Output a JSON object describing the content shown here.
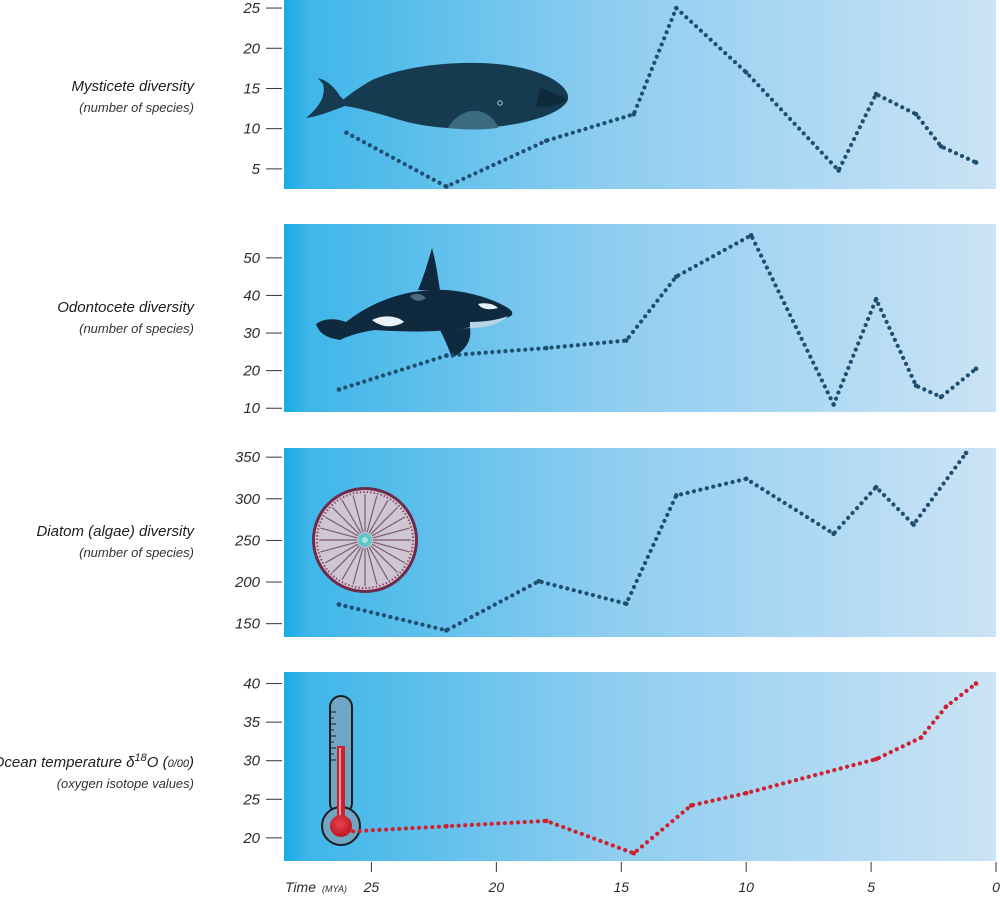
{
  "chart_data": [
    {
      "type": "line",
      "title": "Mysticete diversity",
      "subtitle": "(number of species)",
      "yticks": [
        5,
        10,
        15,
        20,
        25
      ],
      "ylim": [
        2.5,
        26
      ],
      "x": [
        26,
        22,
        18,
        14.5,
        12.8,
        10,
        6.3,
        4.8,
        3.2,
        2.2,
        0.8
      ],
      "values": [
        9.5,
        2.8,
        8.5,
        11.8,
        25,
        17,
        4.8,
        14.3,
        11.8,
        7.8,
        5.8
      ],
      "color": "#1e4e70",
      "icon": "bowhead-whale-icon"
    },
    {
      "type": "line",
      "title": "Odontocete diversity",
      "subtitle": "(number of species)",
      "yticks": [
        10,
        20,
        30,
        40,
        50
      ],
      "ylim": [
        9,
        59
      ],
      "x": [
        26.3,
        22,
        18,
        14.8,
        12.8,
        9.8,
        6.5,
        4.8,
        3.2,
        2.2,
        0.8
      ],
      "values": [
        15,
        24,
        26,
        28,
        45,
        56,
        11,
        39,
        16,
        13,
        20.5
      ],
      "color": "#1e4e70",
      "icon": "orca-icon"
    },
    {
      "type": "line",
      "title": "Diatom (algae) diversity",
      "subtitle": "(number of species)",
      "yticks": [
        150,
        200,
        250,
        300,
        350
      ],
      "ylim": [
        134,
        361
      ],
      "x": [
        26.3,
        22,
        18.3,
        14.8,
        12.8,
        10,
        6.5,
        4.8,
        3.3,
        1.2
      ],
      "values": [
        173,
        142,
        201,
        174,
        304,
        324,
        258,
        314,
        269,
        355
      ],
      "color": "#1e4e70",
      "icon": "diatom-icon"
    },
    {
      "type": "line",
      "title": "Ocean temperature δ18O (0/00)",
      "title_parts": {
        "prefix": "Ocean temperature δ",
        "superscript": "18",
        "middle": "O (",
        "unit": "0/00",
        "suffix": ")"
      },
      "subtitle": "(oxygen isotope values)",
      "yticks": [
        20,
        25,
        30,
        35,
        40
      ],
      "ylim": [
        17,
        41.5
      ],
      "x": [
        26,
        22,
        18,
        14.5,
        12.2,
        10,
        4.8,
        3,
        2,
        0.8
      ],
      "values": [
        20.8,
        21.5,
        22.2,
        18,
        24.2,
        25.8,
        30.2,
        33,
        37,
        40
      ],
      "color": "#d0202e",
      "icon": "thermometer-icon"
    }
  ],
  "x_axis": {
    "label": "Time",
    "unit": "(MYA)",
    "ticks": [
      25,
      20,
      15,
      10,
      5,
      0
    ],
    "xlim": [
      28.5,
      0
    ]
  }
}
